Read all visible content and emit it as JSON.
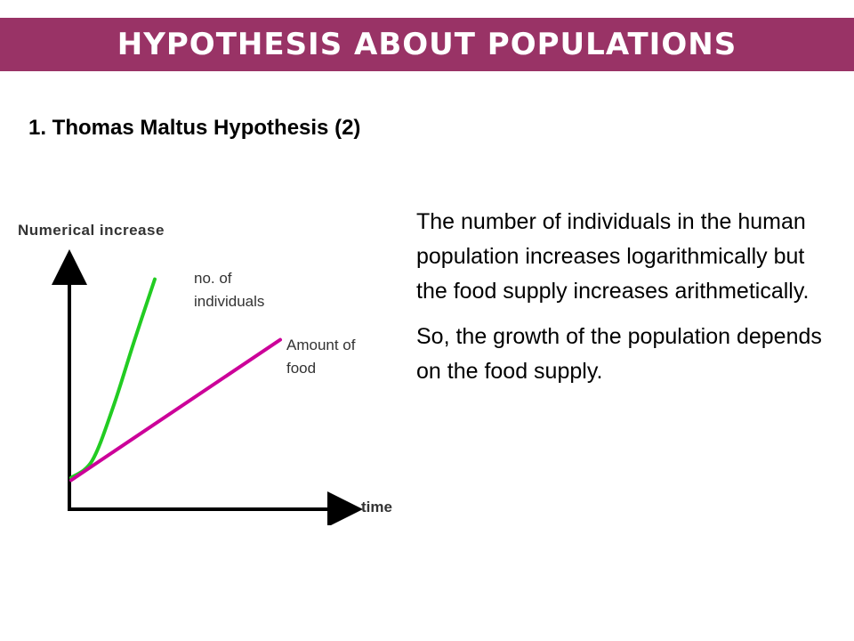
{
  "slide": {
    "title": "HYPOTHESIS ABOUT POPULATIONS",
    "subtitle": "1. Thomas Maltus Hypothesis (2)",
    "colors": {
      "title_bar": "#993366",
      "title_text": "#ffffff",
      "population_curve": "#22cc22",
      "food_line": "#cc0099",
      "axes": "#000000"
    }
  },
  "figure": {
    "y_axis_label": "Numerical increase",
    "x_axis_label": "time",
    "label_individuals": "no. of individuals",
    "label_food": "Amount of food"
  },
  "chart_data": {
    "type": "line",
    "title": "",
    "xlabel": "time",
    "ylabel": "Numerical increase",
    "grid": false,
    "series": [
      {
        "name": "no. of individuals",
        "color": "#22cc22",
        "shape": "exponential",
        "x": [
          0,
          0.1,
          0.2,
          0.3,
          0.4
        ],
        "y": [
          0.13,
          0.2,
          0.42,
          0.69,
          0.95
        ]
      },
      {
        "name": "Amount of food",
        "color": "#cc0099",
        "shape": "linear",
        "x": [
          0,
          1
        ],
        "y": [
          0.12,
          0.7
        ]
      }
    ]
  },
  "text": {
    "paragraph1": "The number of individuals in the human population increases logarithmically but the food supply increases arithmetically.",
    "paragraph2": "So, the growth of the population depends on the food supply."
  }
}
